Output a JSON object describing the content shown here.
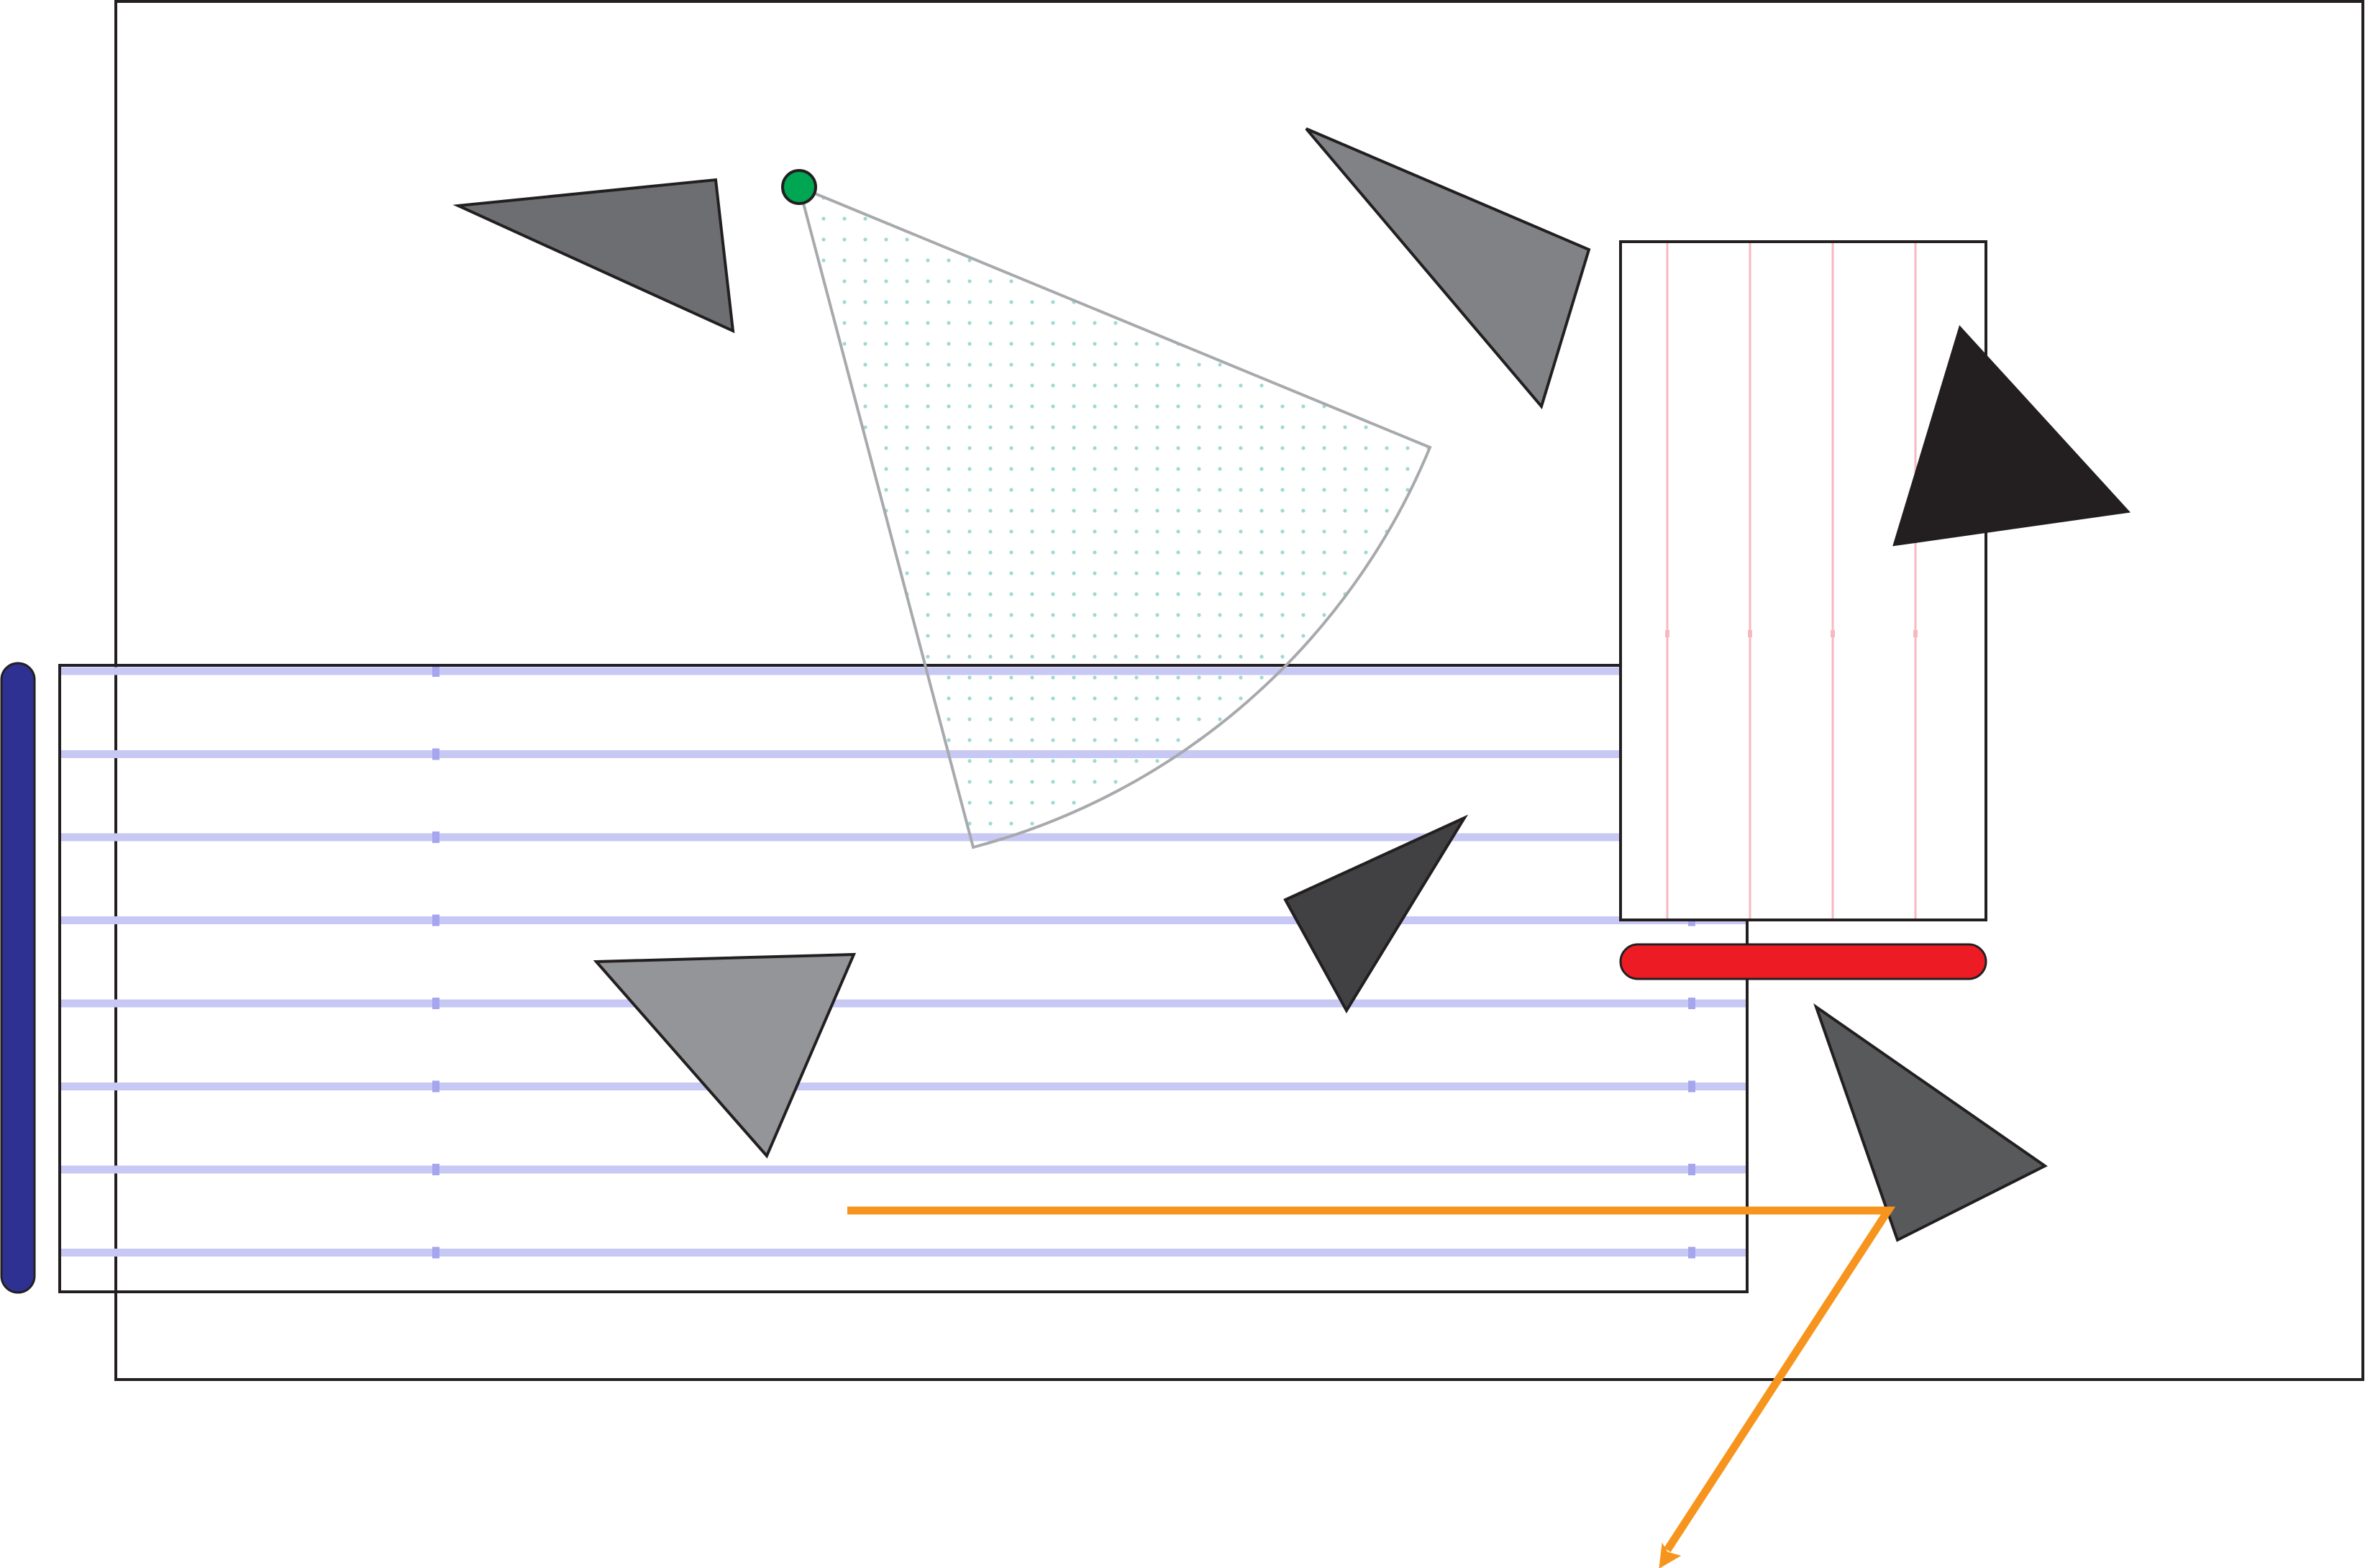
{
  "colors": {
    "frame_stroke": "#231f20",
    "striped_panel_lines": "#c8c8f5",
    "striped_panel_ticks": "#a6a6ef",
    "red_guides": "#f7b9c0",
    "red_bar": "#ed1c24",
    "blue_bar": "#2e3192",
    "orange_arrow": "#f7941d",
    "green_dot": "#00a651",
    "sector_stroke": "#a7a9ac",
    "sector_dots": "#9fd9d4",
    "triangle_upper_left": "#6d6e71",
    "triangle_upper_right": "#808285",
    "triangle_black": "#231f20",
    "triangle_center_dark": "#414042",
    "triangle_lower_left": "#939598",
    "triangle_lower_right": "#58595b"
  }
}
